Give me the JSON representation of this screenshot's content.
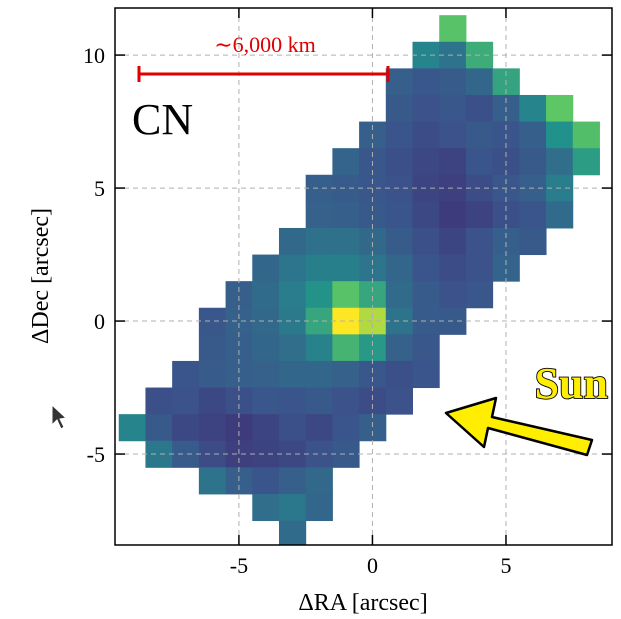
{
  "chart_data": {
    "type": "heatmap",
    "xlabel": "ΔRA [arcsec]",
    "ylabel": "ΔDec [arcsec]",
    "xlim": [
      -9.64,
      8.97
    ],
    "ylim": [
      -8.42,
      11.77
    ],
    "xticks": [
      -5,
      0,
      5
    ],
    "yticks": [
      -5,
      0,
      5,
      10
    ],
    "grid": true,
    "colormap": "viridis",
    "annotations": {
      "scalebar": "∼6,000 km",
      "species": "CN",
      "sun": "Sun"
    },
    "x": [
      -9,
      -8,
      -7,
      -6,
      -5,
      -4,
      -3,
      -2,
      -1,
      0,
      1,
      2,
      3,
      4,
      5,
      6,
      7,
      8
    ],
    "y": [
      11,
      10,
      9,
      8,
      7,
      6,
      5,
      4,
      3,
      2,
      1,
      0,
      -1,
      -2,
      -3,
      -4,
      -5,
      -6,
      -7,
      -8
    ],
    "z": [
      [
        null,
        null,
        null,
        null,
        null,
        null,
        null,
        null,
        null,
        null,
        null,
        null,
        0.72,
        null,
        null,
        null,
        null,
        null
      ],
      [
        null,
        null,
        null,
        null,
        null,
        null,
        null,
        null,
        null,
        null,
        null,
        0.45,
        0.38,
        0.62,
        null,
        null,
        null,
        null
      ],
      [
        null,
        null,
        null,
        null,
        null,
        null,
        null,
        null,
        null,
        null,
        0.3,
        0.27,
        0.29,
        0.33,
        0.58,
        null,
        null,
        null
      ],
      [
        null,
        null,
        null,
        null,
        null,
        null,
        null,
        null,
        null,
        null,
        0.28,
        0.25,
        0.27,
        0.24,
        0.3,
        0.45,
        0.74,
        null
      ],
      [
        null,
        null,
        null,
        null,
        null,
        null,
        null,
        null,
        null,
        0.3,
        0.26,
        0.23,
        0.25,
        0.28,
        0.26,
        0.3,
        0.5,
        0.7
      ],
      [
        null,
        null,
        null,
        null,
        null,
        null,
        null,
        null,
        0.32,
        0.27,
        0.24,
        0.22,
        0.2,
        0.26,
        0.24,
        0.28,
        0.36,
        0.55
      ],
      [
        null,
        null,
        null,
        null,
        null,
        null,
        null,
        0.3,
        0.29,
        0.27,
        0.25,
        0.21,
        0.19,
        0.23,
        0.27,
        0.3,
        0.42,
        null
      ],
      [
        null,
        null,
        null,
        null,
        null,
        null,
        null,
        0.31,
        0.3,
        0.28,
        0.26,
        0.22,
        0.18,
        0.2,
        0.24,
        0.26,
        0.35,
        null
      ],
      [
        null,
        null,
        null,
        null,
        null,
        null,
        0.34,
        0.37,
        0.37,
        0.34,
        0.29,
        0.24,
        0.21,
        0.25,
        0.3,
        0.28,
        null,
        null
      ],
      [
        null,
        null,
        null,
        null,
        null,
        0.33,
        0.39,
        0.43,
        0.43,
        0.39,
        0.33,
        0.26,
        0.23,
        0.25,
        0.32,
        null,
        null,
        null
      ],
      [
        null,
        null,
        null,
        null,
        0.3,
        0.35,
        0.42,
        0.51,
        0.72,
        0.59,
        0.35,
        0.29,
        0.25,
        0.27,
        null,
        null,
        null,
        null
      ],
      [
        null,
        null,
        null,
        0.27,
        0.31,
        0.34,
        0.41,
        0.59,
        1.0,
        0.88,
        0.38,
        0.29,
        0.28,
        null,
        null,
        null,
        null,
        null
      ],
      [
        null,
        null,
        null,
        0.28,
        0.3,
        0.33,
        0.36,
        0.44,
        0.65,
        0.53,
        0.31,
        0.27,
        null,
        null,
        null,
        null,
        null,
        null
      ],
      [
        null,
        null,
        0.26,
        0.29,
        0.3,
        0.31,
        0.33,
        0.33,
        0.31,
        0.27,
        0.24,
        0.26,
        null,
        null,
        null,
        null,
        null,
        null
      ],
      [
        null,
        0.24,
        0.25,
        0.22,
        0.24,
        0.27,
        0.26,
        0.28,
        0.25,
        0.23,
        0.25,
        null,
        null,
        null,
        null,
        null,
        null,
        null
      ],
      [
        0.45,
        0.28,
        0.22,
        0.2,
        0.18,
        0.21,
        0.24,
        0.22,
        0.26,
        0.3,
        null,
        null,
        null,
        null,
        null,
        null,
        null,
        null
      ],
      [
        null,
        0.4,
        0.29,
        0.23,
        0.19,
        0.2,
        0.22,
        0.25,
        0.28,
        null,
        null,
        null,
        null,
        null,
        null,
        null,
        null,
        null
      ],
      [
        null,
        null,
        null,
        0.38,
        0.3,
        0.26,
        0.3,
        0.34,
        null,
        null,
        null,
        null,
        null,
        null,
        null,
        null,
        null,
        null
      ],
      [
        null,
        null,
        null,
        null,
        null,
        0.36,
        0.4,
        0.33,
        null,
        null,
        null,
        null,
        null,
        null,
        null,
        null,
        null,
        null
      ],
      [
        null,
        null,
        null,
        null,
        null,
        null,
        0.35,
        null,
        null,
        null,
        null,
        null,
        null,
        null,
        null,
        null,
        null,
        null
      ]
    ]
  }
}
